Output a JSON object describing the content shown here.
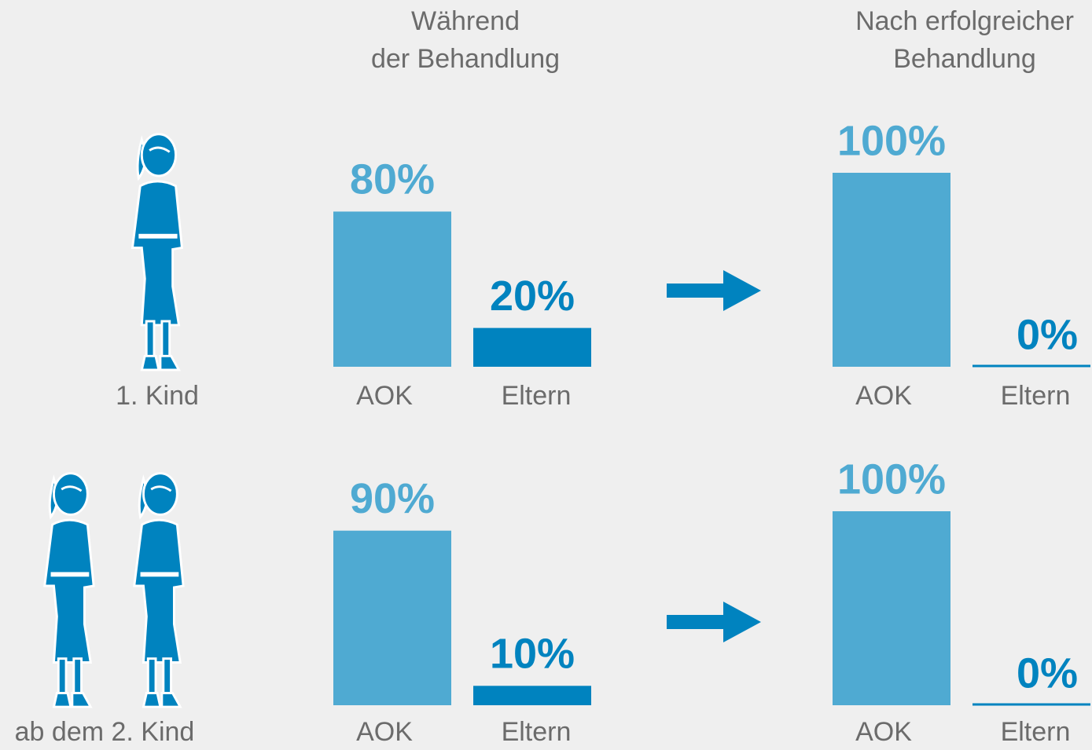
{
  "columns": [
    [
      "Während",
      "der Behandlung"
    ],
    [
      "Nach erfolgreicher",
      "Behandlung"
    ]
  ],
  "rows": [
    "1. Kind",
    "ab dem 2. Kind"
  ],
  "chart_data": [
    {
      "type": "bar",
      "categories": [
        "AOK",
        "Eltern"
      ],
      "values": [
        80,
        20
      ],
      "value_labels": [
        "80%",
        "20%"
      ],
      "colors": [
        "#4faad2",
        "#0083bf"
      ]
    },
    {
      "type": "bar",
      "categories": [
        "AOK",
        "Eltern"
      ],
      "values": [
        100,
        0
      ],
      "value_labels": [
        "100%",
        "0%"
      ],
      "colors": [
        "#4faad2",
        "#0083bf"
      ]
    },
    {
      "type": "bar",
      "categories": [
        "AOK",
        "Eltern"
      ],
      "values": [
        90,
        10
      ],
      "value_labels": [
        "90%",
        "10%"
      ],
      "colors": [
        "#4faad2",
        "#0083bf"
      ]
    },
    {
      "type": "bar",
      "categories": [
        "AOK",
        "Eltern"
      ],
      "values": [
        100,
        0
      ],
      "value_labels": [
        "100%",
        "0%"
      ],
      "colors": [
        "#4faad2",
        "#0083bf"
      ]
    }
  ]
}
